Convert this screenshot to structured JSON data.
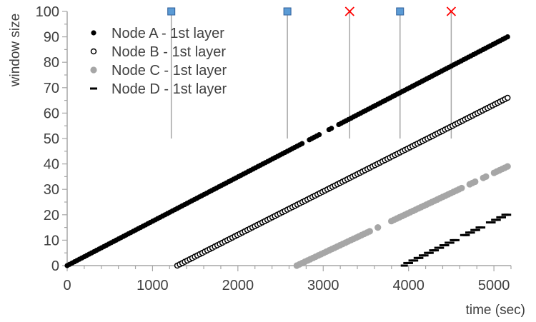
{
  "chart_data": {
    "type": "scatter",
    "xlabel": "time (sec)",
    "ylabel": "window size",
    "xlim": [
      0,
      5200
    ],
    "ylim": [
      0,
      100
    ],
    "x_ticks": [
      "0",
      "1000",
      "2000",
      "3000",
      "4000",
      "5000"
    ],
    "y_ticks": [
      "0",
      "10",
      "20",
      "30",
      "40",
      "50",
      "60",
      "70",
      "80",
      "90",
      "100"
    ],
    "grid": false,
    "legend_position": "top-left",
    "series": [
      {
        "name": "Node A - 1st layer",
        "marker": "filled-black-circle",
        "color": "#000000",
        "start_time": 0,
        "end_time": 5160,
        "start_value": 0,
        "end_value": 90,
        "gaps": [
          [
            2760,
            2830
          ],
          [
            2970,
            3040
          ],
          [
            3110,
            3180
          ]
        ]
      },
      {
        "name": "Node B - 1st layer",
        "marker": "hollow-black-circle",
        "color": "#000000",
        "start_time": 1290,
        "end_time": 5160,
        "start_value": 0,
        "end_value": 66,
        "gaps": []
      },
      {
        "name": "Node C - 1st layer",
        "marker": "gray-circle",
        "color": "#a6a6a6",
        "start_time": 2690,
        "end_time": 5160,
        "start_value": 0,
        "end_value": 39,
        "gaps": [
          [
            3560,
            3620
          ],
          [
            3660,
            3780
          ],
          [
            4640,
            4700
          ],
          [
            4780,
            4860
          ],
          [
            4920,
            4990
          ]
        ]
      },
      {
        "name": "Node D - 1st layer",
        "marker": "black-dash",
        "color": "#000000",
        "start_time": 3950,
        "end_time": 5160,
        "start_value": 0,
        "end_value": 20,
        "gaps": [
          [
            4580,
            4640
          ],
          [
            4870,
            4930
          ]
        ]
      }
    ],
    "events": [
      {
        "time": 1220,
        "marker": "blue-square"
      },
      {
        "time": 2580,
        "marker": "blue-square"
      },
      {
        "time": 3310,
        "marker": "red-x"
      },
      {
        "time": 3900,
        "marker": "blue-square"
      },
      {
        "time": 4500,
        "marker": "red-x"
      }
    ],
    "colors": {
      "axis": "#a6a6a6",
      "event_line": "#a6a6a6",
      "blue_square": "#5b9bd5",
      "blue_square_edge": "#2f5f9a",
      "red_x": "#ff0000"
    }
  }
}
